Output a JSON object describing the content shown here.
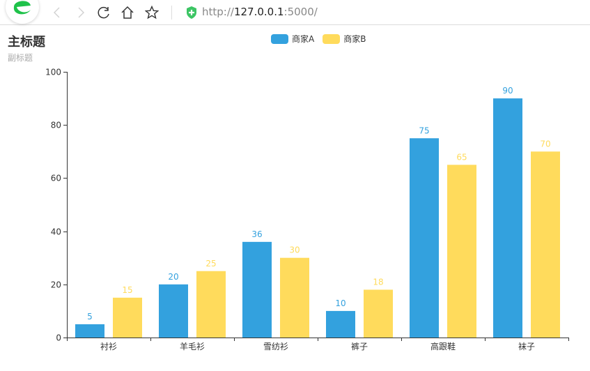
{
  "browser": {
    "url_scheme": "http://",
    "url_host": "127.0.0.1",
    "url_port_path": ":5000/",
    "icons": [
      "browser-logo-icon",
      "back-icon",
      "forward-icon",
      "reload-icon",
      "home-icon",
      "bookmark-star-icon",
      "secure-shield-icon"
    ]
  },
  "chart": {
    "title": "主标题",
    "subtitle": "副标题",
    "legend": [
      {
        "label": "商家A",
        "color": "#33a1de"
      },
      {
        "label": "商家B",
        "color": "#ffdb5c"
      }
    ]
  },
  "chart_data": {
    "type": "bar",
    "title": "主标题",
    "subtitle": "副标题",
    "categories": [
      "衬衫",
      "羊毛衫",
      "雪纺衫",
      "裤子",
      "高跟鞋",
      "袜子"
    ],
    "series": [
      {
        "name": "商家A",
        "color": "#33a1de",
        "values": [
          5,
          20,
          36,
          10,
          75,
          90
        ]
      },
      {
        "name": "商家B",
        "color": "#ffdb5c",
        "values": [
          15,
          25,
          30,
          18,
          65,
          70
        ]
      }
    ],
    "xlabel": "",
    "ylabel": "",
    "ylim": [
      0,
      100
    ],
    "yticks": [
      0,
      20,
      40,
      60,
      80,
      100
    ],
    "grid": false,
    "legend_position": "top-center",
    "data_labels": true
  }
}
